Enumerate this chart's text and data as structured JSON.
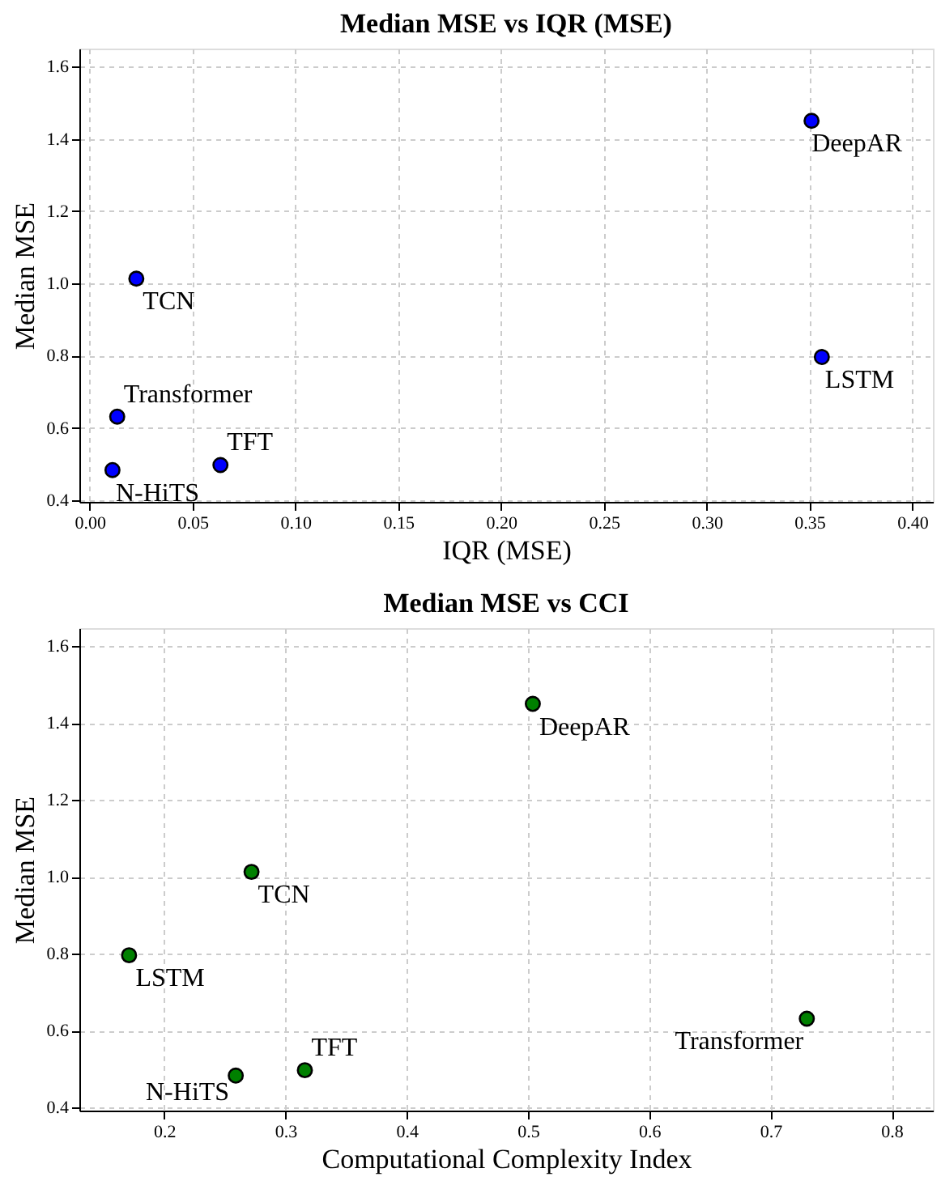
{
  "chart_data": [
    {
      "type": "scatter",
      "title": "Median MSE vs IQR (MSE)",
      "xlabel": "IQR (MSE)",
      "ylabel": "Median MSE",
      "x": [
        0.351,
        0.356,
        0.0227,
        0.0134,
        0.0111,
        0.0636
      ],
      "series": [
        {
          "color": "#0000ff",
          "values": [
            1.45,
            0.796,
            1.013,
            0.631,
            0.483,
            0.497
          ]
        }
      ],
      "xlim": [
        -0.005,
        0.41
      ],
      "ylim": [
        0.395,
        1.65
      ],
      "xticks": [
        {
          "value": 0,
          "label": "0.00"
        },
        0.05,
        {
          "value": 0.1,
          "label": "0.10"
        },
        0.15,
        {
          "value": 0.2,
          "label": "0.20"
        },
        0.25,
        {
          "value": 0.3,
          "label": "0.30"
        },
        0.35,
        {
          "value": 0.4,
          "label": "0.40"
        }
      ],
      "yticks": [
        0.4,
        0.6,
        0.8,
        {
          "value": 1.0,
          "label": "1.0"
        },
        1.2,
        1.4,
        1.6
      ],
      "annotations": [
        {
          "text": "DeepAR",
          "x": 0.351,
          "y": 1.45
        },
        {
          "text": "LSTM",
          "x": 0.356,
          "y": 0.796
        },
        {
          "text": "TCN",
          "x": 0.0227,
          "y": 1.013
        },
        {
          "text": "Transformer",
          "x": 0.0134,
          "y": 0.631
        },
        {
          "text": "N-HiTS",
          "x": 0.0111,
          "y": 0.483
        },
        {
          "text": "TFT",
          "x": 0.0636,
          "y": 0.497
        }
      ],
      "marker": "circle",
      "grid": true
    },
    {
      "type": "scatter",
      "title": "Median MSE vs CCI",
      "xlabel": "Computational Complexity Index",
      "ylabel": "Median MSE",
      "x": [
        0.504,
        0.171,
        0.272,
        0.73,
        0.259,
        0.316
      ],
      "series": [
        {
          "color": "#008000",
          "values": [
            1.45,
            0.796,
            1.013,
            0.631,
            0.483,
            0.497
          ]
        }
      ],
      "xlim": [
        0.13,
        0.834
      ],
      "ylim": [
        0.392,
        1.647
      ],
      "xticks": [
        0.2,
        0.3,
        0.4,
        0.5,
        0.6,
        0.7,
        0.8
      ],
      "yticks": [
        0.4,
        0.6,
        0.8,
        {
          "value": 1.0,
          "label": "1.0"
        },
        1.2,
        1.4,
        1.6
      ],
      "annotations": [
        {
          "text": "DeepAR",
          "x": 0.504,
          "y": 1.45
        },
        {
          "text": "LSTM",
          "x": 0.171,
          "y": 0.796
        },
        {
          "text": "TCN",
          "x": 0.272,
          "y": 1.013
        },
        {
          "text": "Transformer",
          "x": 0.73,
          "y": 0.631
        },
        {
          "text": "N-HiTS",
          "x": 0.259,
          "y": 0.483
        },
        {
          "text": "TFT",
          "x": 0.316,
          "y": 0.497
        }
      ],
      "marker": "circle",
      "grid": true
    }
  ]
}
